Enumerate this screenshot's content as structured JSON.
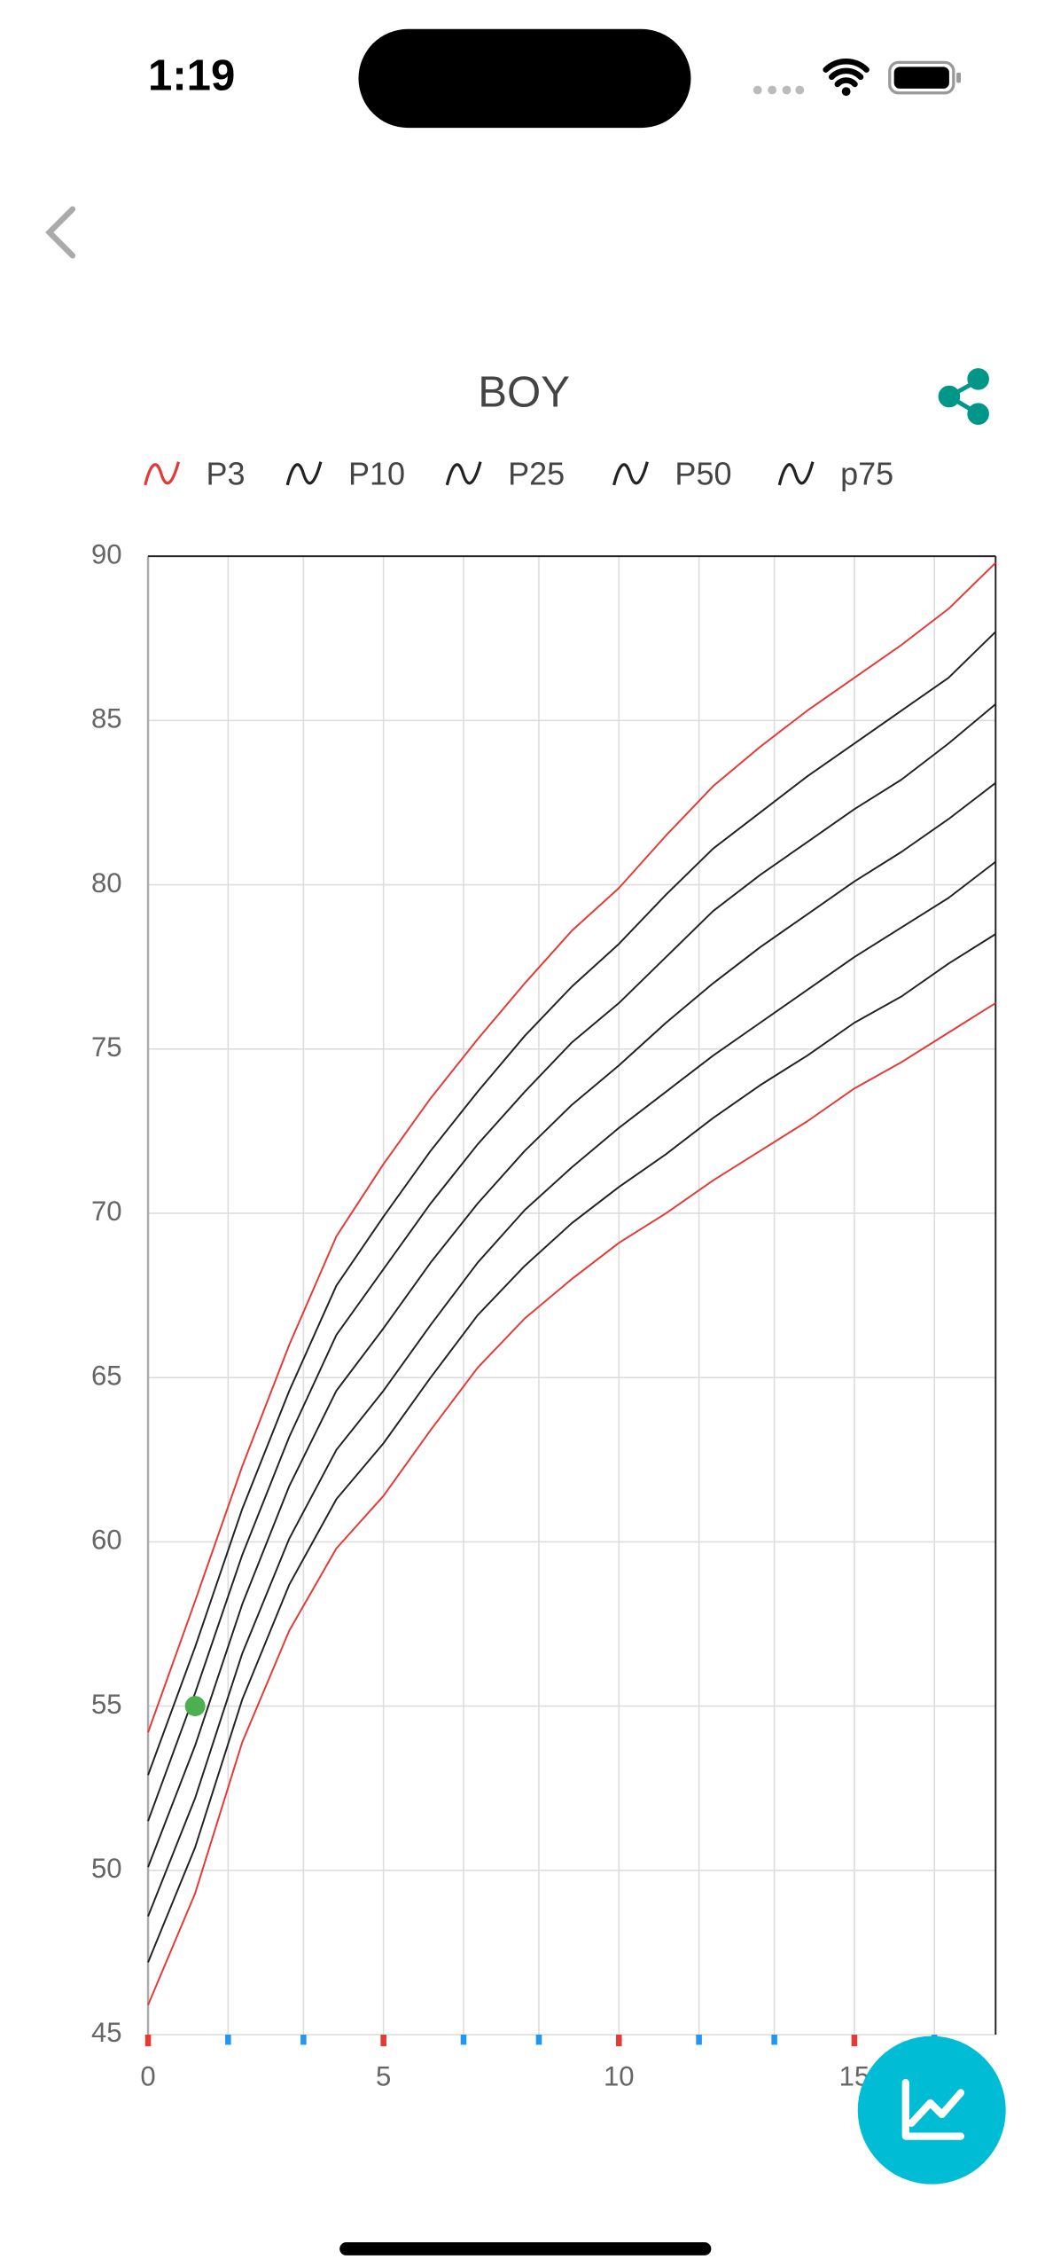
{
  "status_bar": {
    "time": "1:19"
  },
  "chart_data": {
    "type": "line",
    "title": "BOY",
    "x": [
      0,
      1,
      2,
      3,
      4,
      5,
      6,
      7,
      8,
      9,
      10,
      11,
      12,
      13,
      14,
      15,
      16,
      17,
      18
    ],
    "series": [
      {
        "name": "P3",
        "color": "#e53935",
        "values": [
          45.9,
          49.3,
          53.9,
          57.3,
          59.8,
          61.4,
          63.4,
          65.3,
          66.8,
          68.0,
          69.1,
          70.0,
          71.0,
          71.9,
          72.8,
          73.8,
          74.6,
          75.5,
          76.4
        ]
      },
      {
        "name": "P10",
        "color": "#222222",
        "values": [
          47.2,
          50.7,
          55.2,
          58.7,
          61.3,
          63.0,
          65.0,
          66.9,
          68.4,
          69.7,
          70.8,
          71.8,
          72.9,
          73.9,
          74.8,
          75.8,
          76.6,
          77.6,
          78.5
        ]
      },
      {
        "name": "P25",
        "color": "#222222",
        "values": [
          48.6,
          52.2,
          56.6,
          60.1,
          62.8,
          64.6,
          66.6,
          68.5,
          70.1,
          71.4,
          72.6,
          73.7,
          74.8,
          75.8,
          76.8,
          77.8,
          78.7,
          79.6,
          80.7
        ]
      },
      {
        "name": "P50",
        "color": "#222222",
        "values": [
          50.1,
          53.8,
          58.1,
          61.7,
          64.6,
          66.5,
          68.5,
          70.3,
          71.9,
          73.3,
          74.5,
          75.8,
          77.0,
          78.1,
          79.1,
          80.1,
          81.0,
          82.0,
          83.1
        ]
      },
      {
        "name": "p75",
        "color": "#222222",
        "values": [
          51.5,
          55.4,
          59.6,
          63.2,
          66.3,
          68.3,
          70.3,
          72.1,
          73.7,
          75.2,
          76.4,
          77.8,
          79.2,
          80.3,
          81.3,
          82.3,
          83.2,
          84.3,
          85.5
        ]
      },
      {
        "color": "#222222",
        "values": [
          52.9,
          56.8,
          61.0,
          64.6,
          67.8,
          69.9,
          71.9,
          73.7,
          75.4,
          76.9,
          78.2,
          79.7,
          81.1,
          82.2,
          83.3,
          84.3,
          85.3,
          86.3,
          87.7
        ]
      },
      {
        "color": "#e53935",
        "values": [
          54.2,
          58.2,
          62.3,
          66.0,
          69.3,
          71.5,
          73.5,
          75.3,
          77.0,
          78.6,
          79.9,
          81.5,
          83.0,
          84.2,
          85.3,
          86.3,
          87.3,
          88.4,
          89.8
        ]
      }
    ],
    "points": [
      {
        "x": 1,
        "y": 55,
        "color": "#4caf50"
      }
    ],
    "xlim": [
      0,
      18
    ],
    "xticks": [
      0,
      5,
      10,
      15
    ],
    "x_minor_ticks": [
      1.7,
      3.3,
      6.7,
      8.3,
      11.7,
      13.3,
      16.7
    ],
    "major_tick_color": "#e53935",
    "minor_tick_color": "#2196f3",
    "ylim": [
      45,
      90
    ],
    "yticks": [
      45,
      50,
      55,
      60,
      65,
      70,
      75,
      80,
      85,
      90
    ],
    "grid": true
  }
}
